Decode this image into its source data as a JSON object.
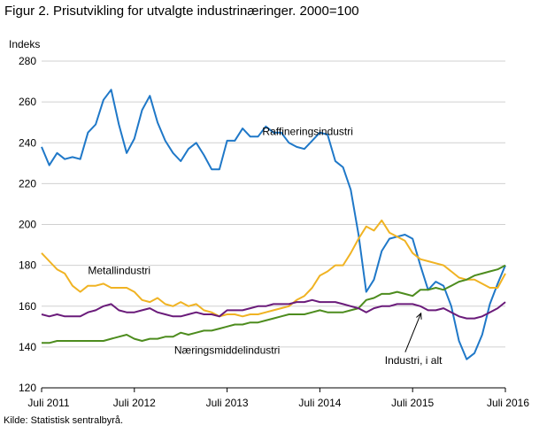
{
  "title": "Figur 2. Prisutvikling for utvalgte industrinæringer. 2000=100",
  "source": "Kilde: Statistisk sentralbyrå.",
  "chart_data": {
    "type": "line",
    "ylabel": "Indeks",
    "xlabel": "",
    "ylim": [
      120,
      280
    ],
    "yticks": [
      120,
      140,
      160,
      180,
      200,
      220,
      240,
      260,
      280
    ],
    "x_tick_labels": [
      "Juli 2011",
      "Juli 2012",
      "Juli 2013",
      "Juli 2014",
      "Juli 2015",
      "Juli 2016"
    ],
    "x_start": "2011-07",
    "x_end": "2016-07",
    "grid": "horizontal",
    "series": [
      {
        "name": "Raffineringsindustri",
        "color": "#1f78c8",
        "values": [
          238,
          229,
          235,
          232,
          233,
          232,
          245,
          249,
          261,
          266,
          249,
          235,
          242,
          256,
          263,
          250,
          241,
          235,
          231,
          237,
          240,
          234,
          227,
          227,
          241,
          241,
          247,
          243,
          243,
          248,
          245,
          245,
          240,
          238,
          237,
          241,
          245,
          244,
          231,
          228,
          217,
          195,
          167,
          173,
          187,
          193,
          194,
          195,
          193,
          180,
          168,
          172,
          170,
          160,
          143,
          134,
          137,
          146,
          161,
          171,
          180
        ],
        "label": "Raffineringsindustri",
        "label_at": [
          2013.88,
          245.5
        ]
      },
      {
        "name": "Metallindustri",
        "color": "#f0b323",
        "values": [
          186,
          182,
          178,
          176,
          170,
          167,
          170,
          170,
          171,
          169,
          169,
          169,
          167,
          163,
          162,
          164,
          161,
          160,
          162,
          160,
          161,
          158,
          157,
          155,
          156,
          156,
          155,
          156,
          156,
          157,
          158,
          159,
          160,
          163,
          165,
          169,
          175,
          177,
          180,
          180,
          186,
          193,
          199,
          197,
          202,
          196,
          194,
          192,
          186,
          183,
          182,
          181,
          180,
          177,
          174,
          173,
          173,
          171,
          169,
          169,
          176
        ],
        "label": "Metallindustri",
        "label_at": [
          2012.0,
          177.5
        ]
      },
      {
        "name": "Næringsmiddelindustri",
        "color": "#4d8c1e",
        "values": [
          142,
          142,
          143,
          143,
          143,
          143,
          143,
          143,
          143,
          144,
          145,
          146,
          144,
          143,
          144,
          144,
          145,
          145,
          147,
          146,
          147,
          148,
          148,
          149,
          150,
          151,
          151,
          152,
          152,
          153,
          154,
          155,
          156,
          156,
          156,
          157,
          158,
          157,
          157,
          157,
          158,
          159,
          163,
          164,
          166,
          166,
          167,
          166,
          165,
          168,
          168,
          169,
          168,
          170,
          172,
          173,
          175,
          176,
          177,
          178,
          180
        ],
        "label": "Næringsmiddelindustri",
        "label_at": [
          2012.93,
          138.5
        ]
      },
      {
        "name": "Industri, i alt",
        "color": "#6a1b7a",
        "values": [
          156,
          155,
          156,
          155,
          155,
          155,
          157,
          158,
          160,
          161,
          158,
          157,
          157,
          158,
          159,
          157,
          156,
          155,
          155,
          156,
          157,
          156,
          156,
          155,
          158,
          158,
          158,
          159,
          160,
          160,
          161,
          161,
          161,
          162,
          162,
          163,
          162,
          162,
          162,
          161,
          160,
          159,
          157,
          159,
          160,
          160,
          161,
          161,
          161,
          160,
          158,
          158,
          159,
          157,
          155,
          154,
          154,
          155,
          157,
          159,
          162
        ],
        "label": "Industri, i alt",
        "label_at": [
          2015.2,
          133.5
        ]
      }
    ]
  }
}
